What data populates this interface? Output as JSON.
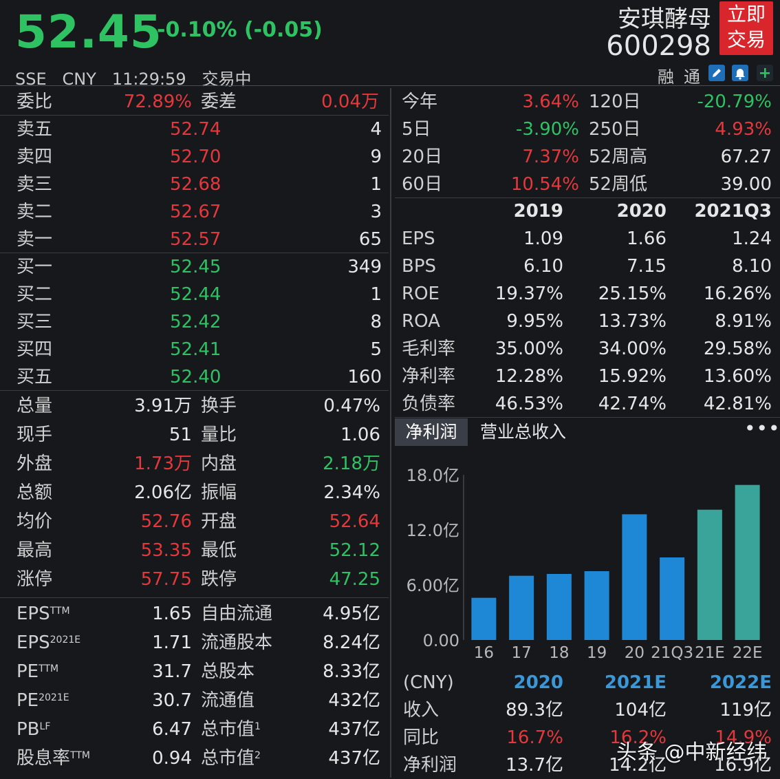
{
  "header": {
    "price": "52.45",
    "change": "-0.10% (-0.05)",
    "exchange": "SSE",
    "currency": "CNY",
    "time": "11:29:59",
    "status": "交易中",
    "stock_name": "安琪酵母",
    "stock_code": "600298",
    "trade_button_line1": "立即",
    "trade_button_line2": "交易",
    "tool_rong": "融",
    "tool_tong": "通",
    "colors": {
      "up": "#e5383b",
      "down": "#2ec262",
      "accent": "#1e88d6"
    }
  },
  "orderbook": {
    "wei_bi_label": "委比",
    "wei_bi": "72.89%",
    "wei_cha_label": "委差",
    "wei_cha": "0.04万",
    "sell": [
      {
        "label": "卖五",
        "price": "52.74",
        "vol": "4"
      },
      {
        "label": "卖四",
        "price": "52.70",
        "vol": "9"
      },
      {
        "label": "卖三",
        "price": "52.68",
        "vol": "1"
      },
      {
        "label": "卖二",
        "price": "52.67",
        "vol": "3"
      },
      {
        "label": "卖一",
        "price": "52.57",
        "vol": "65"
      }
    ],
    "buy": [
      {
        "label": "买一",
        "price": "52.45",
        "vol": "349"
      },
      {
        "label": "买二",
        "price": "52.44",
        "vol": "1"
      },
      {
        "label": "买三",
        "price": "52.42",
        "vol": "8"
      },
      {
        "label": "买四",
        "price": "52.41",
        "vol": "5"
      },
      {
        "label": "买五",
        "price": "52.40",
        "vol": "160"
      }
    ]
  },
  "stats": [
    {
      "l1": "总量",
      "v1": "3.91万",
      "c1": "white",
      "l2": "换手",
      "v2": "0.47%",
      "c2": "white"
    },
    {
      "l1": "现手",
      "v1": "51",
      "c1": "white",
      "l2": "量比",
      "v2": "1.06",
      "c2": "white"
    },
    {
      "l1": "外盘",
      "v1": "1.73万",
      "c1": "red",
      "l2": "内盘",
      "v2": "2.18万",
      "c2": "green"
    },
    {
      "l1": "总额",
      "v1": "2.06亿",
      "c1": "white",
      "l2": "振幅",
      "v2": "2.34%",
      "c2": "white"
    },
    {
      "l1": "均价",
      "v1": "52.76",
      "c1": "red",
      "l2": "开盘",
      "v2": "52.64",
      "c2": "red"
    },
    {
      "l1": "最高",
      "v1": "53.35",
      "c1": "red",
      "l2": "最低",
      "v2": "52.12",
      "c2": "green"
    },
    {
      "l1": "涨停",
      "v1": "57.75",
      "c1": "red",
      "l2": "跌停",
      "v2": "47.25",
      "c2": "green"
    }
  ],
  "valuation": [
    {
      "l1": "EPS",
      "s1": "TTM",
      "v1": "1.65",
      "l2": "自由流通",
      "s2": "",
      "v2": "4.95亿"
    },
    {
      "l1": "EPS",
      "s1": "2021E",
      "v1": "1.71",
      "l2": "流通股本",
      "s2": "",
      "v2": "8.24亿"
    },
    {
      "l1": "PE",
      "s1": "TTM",
      "v1": "31.7",
      "l2": "总股本",
      "s2": "",
      "v2": "8.33亿"
    },
    {
      "l1": "PE",
      "s1": "2021E",
      "v1": "30.7",
      "l2": "流通值",
      "s2": "",
      "v2": "432亿"
    },
    {
      "l1": "PB",
      "s1": "LF",
      "v1": "6.47",
      "l2": "总市值",
      "s2": "1",
      "v2": "437亿"
    },
    {
      "l1": "股息率",
      "s1": "TTM",
      "v1": "0.94",
      "l2": "总市值",
      "s2": "2",
      "v2": "437亿"
    }
  ],
  "performance": [
    {
      "l1": "今年",
      "v1": "3.64%",
      "c1": "red",
      "l2": "120日",
      "v2": "-20.79%",
      "c2": "green"
    },
    {
      "l1": "5日",
      "v1": "-3.90%",
      "c1": "green",
      "l2": "250日",
      "v2": "4.93%",
      "c2": "red"
    },
    {
      "l1": "20日",
      "v1": "7.37%",
      "c1": "red",
      "l2": "52周高",
      "v2": "67.27",
      "c2": "white"
    },
    {
      "l1": "60日",
      "v1": "10.54%",
      "c1": "red",
      "l2": "52周低",
      "v2": "39.00",
      "c2": "white"
    }
  ],
  "financials": {
    "years": [
      "2019",
      "2020",
      "2021Q3"
    ],
    "rows": [
      {
        "label": "EPS",
        "vals": [
          "1.09",
          "1.66",
          "1.24"
        ]
      },
      {
        "label": "BPS",
        "vals": [
          "6.10",
          "7.15",
          "8.10"
        ]
      },
      {
        "label": "ROE",
        "vals": [
          "19.37%",
          "25.15%",
          "16.26%"
        ]
      },
      {
        "label": "ROA",
        "vals": [
          "9.95%",
          "13.73%",
          "8.91%"
        ]
      },
      {
        "label": "毛利率",
        "vals": [
          "35.00%",
          "34.00%",
          "29.58%"
        ]
      },
      {
        "label": "净利率",
        "vals": [
          "12.28%",
          "15.92%",
          "13.60%"
        ]
      },
      {
        "label": "负债率",
        "vals": [
          "46.53%",
          "42.74%",
          "42.81%"
        ]
      }
    ]
  },
  "tabs": {
    "active": "净利润",
    "other": "营业总收入",
    "more": "•••"
  },
  "chart_data": {
    "type": "bar",
    "categories": [
      "16",
      "17",
      "18",
      "19",
      "20",
      "21Q3",
      "21E",
      "22E"
    ],
    "values": [
      4.6,
      7.0,
      7.2,
      7.5,
      13.7,
      9.0,
      14.2,
      16.9
    ],
    "y_ticks": [
      "18.0亿",
      "12.0亿",
      "6.00亿",
      "0.00"
    ],
    "y_tick_values": [
      18,
      12,
      6,
      0
    ],
    "ylim": [
      0,
      18
    ],
    "bar_colors": [
      "#1e88d6",
      "#1e88d6",
      "#1e88d6",
      "#1e88d6",
      "#1e88d6",
      "#1e88d6",
      "#3aa39a",
      "#3aa39a"
    ]
  },
  "forecast": {
    "unit": "(CNY)",
    "years": [
      "2020",
      "2021E",
      "2022E"
    ],
    "rows": [
      {
        "label": "收入",
        "vals": [
          "89.3亿",
          "104亿",
          "119亿"
        ],
        "color": "white"
      },
      {
        "label": "同比",
        "vals": [
          "16.7%",
          "16.2%",
          "14.9%"
        ],
        "color": "red"
      },
      {
        "label": "净利润",
        "vals": [
          "13.7亿",
          "14.2亿",
          "16.9亿"
        ],
        "color": "white"
      }
    ]
  },
  "watermark": "头条 @中新经纬"
}
